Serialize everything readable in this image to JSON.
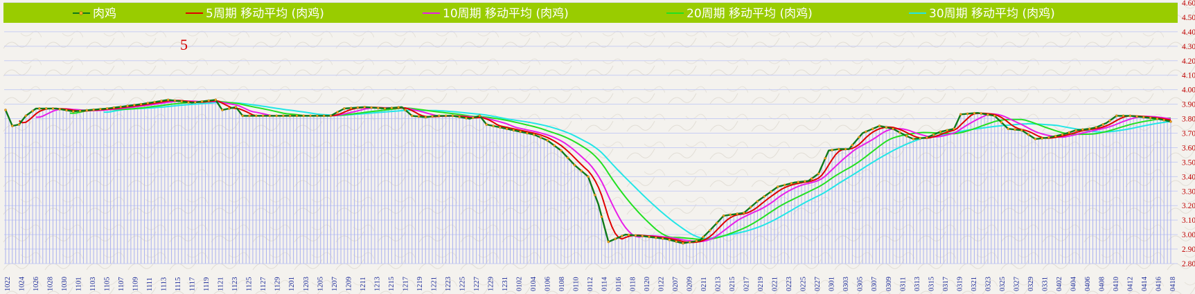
{
  "chart_data": {
    "type": "line",
    "annotation": "5",
    "ylim": [
      2.8,
      4.6
    ],
    "y_ticks": [
      "2.80",
      "2.90",
      "3.00",
      "3.10",
      "3.20",
      "3.30",
      "3.40",
      "3.50",
      "3.60",
      "3.70",
      "3.80",
      "3.90",
      "4.00",
      "4.10",
      "4.20",
      "4.30",
      "4.40",
      "4.50",
      "4.60"
    ],
    "x_labels": [
      "1022",
      "1024",
      "1026",
      "1028",
      "1030",
      "1101",
      "1103",
      "1105",
      "1107",
      "1109",
      "1111",
      "1113",
      "1115",
      "1117",
      "1119",
      "1121",
      "1123",
      "1125",
      "1127",
      "1129",
      "1201",
      "1203",
      "1205",
      "1207",
      "1209",
      "1211",
      "1213",
      "1215",
      "1217",
      "1219",
      "1221",
      "1223",
      "1225",
      "1227",
      "1229",
      "1231",
      "0102",
      "0104",
      "0106",
      "0108",
      "0110",
      "0112",
      "0114",
      "0116",
      "0118",
      "0120",
      "0122",
      "0207",
      "0209",
      "0211",
      "0213",
      "0215",
      "0217",
      "0219",
      "0221",
      "0223",
      "0225",
      "0227",
      "0301",
      "0303",
      "0305",
      "0307",
      "0309",
      "0311",
      "0313",
      "0315",
      "0317",
      "0319",
      "0321",
      "0323",
      "0325",
      "0327",
      "0329",
      "0331",
      "0402",
      "0404",
      "0406",
      "0408",
      "0410",
      "0412",
      "0414",
      "0416",
      "0418"
    ],
    "grid": true,
    "legend_position": "top",
    "colors": {
      "legend_bg": "#99cc00",
      "price": "#0f7a1a",
      "marker": "#f5a623",
      "ma5": "#e00000",
      "ma10": "#e81ee8",
      "ma20": "#22e022",
      "ma30": "#22e6e6",
      "vbar": "#aab0ee",
      "tick_y": "#c00000",
      "tick_x": "#1a2a99"
    },
    "series": [
      {
        "name": "肉鸡",
        "key": "price"
      },
      {
        "name": "5周期 移动平均 (肉鸡)",
        "key": "ma5"
      },
      {
        "name": "10周期 移动平均 (肉鸡)",
        "key": "ma10"
      },
      {
        "name": "20周期 移动平均 (肉鸡)",
        "key": "ma20"
      },
      {
        "name": "30周期 移动平均 (肉鸡)",
        "key": "ma30"
      }
    ],
    "price_anchors": [
      [
        0,
        3.86
      ],
      [
        2,
        3.75
      ],
      [
        4,
        3.76
      ],
      [
        6,
        3.82
      ],
      [
        9,
        3.87
      ],
      [
        11,
        3.87
      ],
      [
        15,
        3.87
      ],
      [
        20,
        3.85
      ],
      [
        30,
        3.87
      ],
      [
        40,
        3.9
      ],
      [
        48,
        3.93
      ],
      [
        55,
        3.91
      ],
      [
        62,
        3.93
      ],
      [
        64,
        3.86
      ],
      [
        68,
        3.88
      ],
      [
        70,
        3.82
      ],
      [
        78,
        3.82
      ],
      [
        90,
        3.82
      ],
      [
        96,
        3.82
      ],
      [
        100,
        3.87
      ],
      [
        106,
        3.88
      ],
      [
        112,
        3.87
      ],
      [
        117,
        3.88
      ],
      [
        120,
        3.82
      ],
      [
        124,
        3.81
      ],
      [
        127,
        3.82
      ],
      [
        132,
        3.82
      ],
      [
        137,
        3.8
      ],
      [
        140,
        3.82
      ],
      [
        142,
        3.76
      ],
      [
        150,
        3.72
      ],
      [
        156,
        3.69
      ],
      [
        160,
        3.65
      ],
      [
        164,
        3.58
      ],
      [
        168,
        3.48
      ],
      [
        172,
        3.4
      ],
      [
        175,
        3.21
      ],
      [
        178,
        2.95
      ],
      [
        183,
        3.0
      ],
      [
        188,
        2.99
      ],
      [
        195,
        2.97
      ],
      [
        200,
        2.94
      ],
      [
        205,
        2.96
      ],
      [
        208,
        3.03
      ],
      [
        212,
        3.13
      ],
      [
        218,
        3.15
      ],
      [
        222,
        3.23
      ],
      [
        225,
        3.28
      ],
      [
        228,
        3.33
      ],
      [
        233,
        3.36
      ],
      [
        237,
        3.37
      ],
      [
        240,
        3.42
      ],
      [
        243,
        3.58
      ],
      [
        246,
        3.59
      ],
      [
        249,
        3.59
      ],
      [
        253,
        3.7
      ],
      [
        258,
        3.75
      ],
      [
        262,
        3.73
      ],
      [
        266,
        3.68
      ],
      [
        268,
        3.66
      ],
      [
        272,
        3.67
      ],
      [
        276,
        3.71
      ],
      [
        280,
        3.73
      ],
      [
        282,
        3.83
      ],
      [
        287,
        3.84
      ],
      [
        292,
        3.82
      ],
      [
        296,
        3.73
      ],
      [
        300,
        3.72
      ],
      [
        304,
        3.66
      ],
      [
        308,
        3.67
      ],
      [
        312,
        3.69
      ],
      [
        316,
        3.72
      ],
      [
        320,
        3.73
      ],
      [
        322,
        3.74
      ],
      [
        325,
        3.77
      ],
      [
        328,
        3.82
      ],
      [
        332,
        3.82
      ],
      [
        336,
        3.81
      ],
      [
        340,
        3.8
      ],
      [
        344,
        3.78
      ]
    ]
  }
}
